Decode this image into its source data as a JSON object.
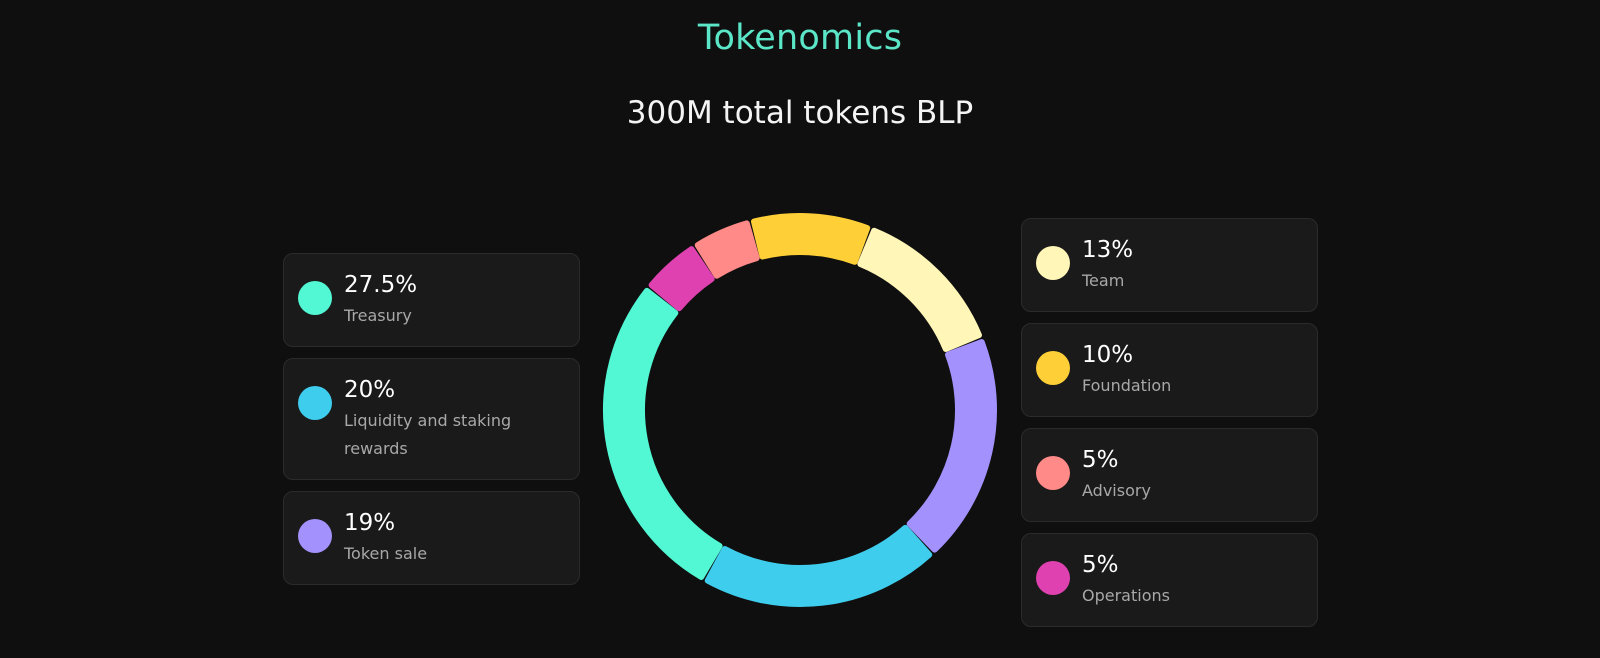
{
  "header": {
    "title": "Tokenomics",
    "subtitle": "300M total tokens BLP"
  },
  "chart_data": {
    "type": "pie",
    "variant": "donut",
    "title": "Tokenomics",
    "subtitle": "300M total tokens BLP",
    "start_angle_deg": -51,
    "direction": "counterclockwise",
    "slices": [
      {
        "label": "Treasury",
        "value": 27.5,
        "display": "27.5%",
        "color": "#52f8d4"
      },
      {
        "label": "Liquidity and staking rewards",
        "value": 20,
        "display": "20%",
        "color": "#3fcdee"
      },
      {
        "label": "Token sale",
        "value": 19,
        "display": "19%",
        "color": "#a392fd"
      },
      {
        "label": "Team",
        "value": 13,
        "display": "13%",
        "color": "#fff6b7"
      },
      {
        "label": "Foundation",
        "value": 10,
        "display": "10%",
        "color": "#ffcf37"
      },
      {
        "label": "Advisory",
        "value": 5,
        "display": "5%",
        "color": "#ff8a88"
      },
      {
        "label": "Operations",
        "value": 5,
        "display": "5%",
        "color": "#df42b0"
      }
    ]
  },
  "legend": {
    "left": [
      {
        "pct": "27.5%",
        "name": "Treasury",
        "color": "#52f8d4"
      },
      {
        "pct": "20%",
        "name": "Liquidity and staking rewards",
        "color": "#3fcdee"
      },
      {
        "pct": "19%",
        "name": "Token sale",
        "color": "#a392fd"
      }
    ],
    "right": [
      {
        "pct": "13%",
        "name": "Team",
        "color": "#fff6b7"
      },
      {
        "pct": "10%",
        "name": "Foundation",
        "color": "#ffcf37"
      },
      {
        "pct": "5%",
        "name": "Advisory",
        "color": "#ff8a88"
      },
      {
        "pct": "5%",
        "name": "Operations",
        "color": "#df42b0"
      }
    ]
  }
}
